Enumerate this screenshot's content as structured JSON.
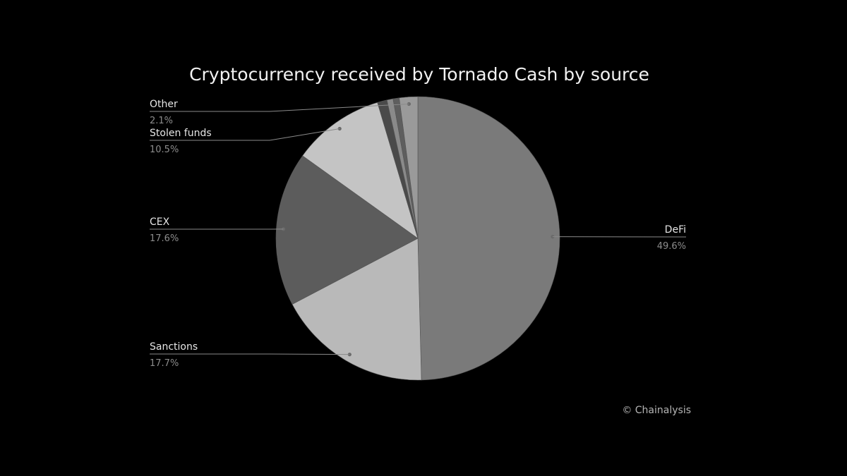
{
  "chart_data": {
    "type": "pie",
    "title": "Cryptocurrency received by Tornado Cash by source",
    "slices": [
      {
        "label": "DeFi",
        "value": 49.6,
        "value_label": "49.6%",
        "color": "#7a7a7a"
      },
      {
        "label": "Sanctions",
        "value": 17.7,
        "value_label": "17.7%",
        "color": "#b9b9b9"
      },
      {
        "label": "CEX",
        "value": 17.6,
        "value_label": "17.6%",
        "color": "#5c5c5c"
      },
      {
        "label": "Stolen funds",
        "value": 10.5,
        "value_label": "10.5%",
        "color": "#c4c4c4"
      },
      {
        "label": "",
        "value": 1.1,
        "value_label": "",
        "color": "#4a4a4a"
      },
      {
        "label": "",
        "value": 0.7,
        "value_label": "",
        "color": "#8a8a8a"
      },
      {
        "label": "",
        "value": 0.7,
        "value_label": "",
        "color": "#5e5e5e"
      },
      {
        "label": "Other",
        "value": 2.1,
        "value_label": "2.1%",
        "color": "#9a9a9a"
      }
    ],
    "legend": "none",
    "labels": "outside-with-leader-lines"
  },
  "credit": "© Chainalysis"
}
